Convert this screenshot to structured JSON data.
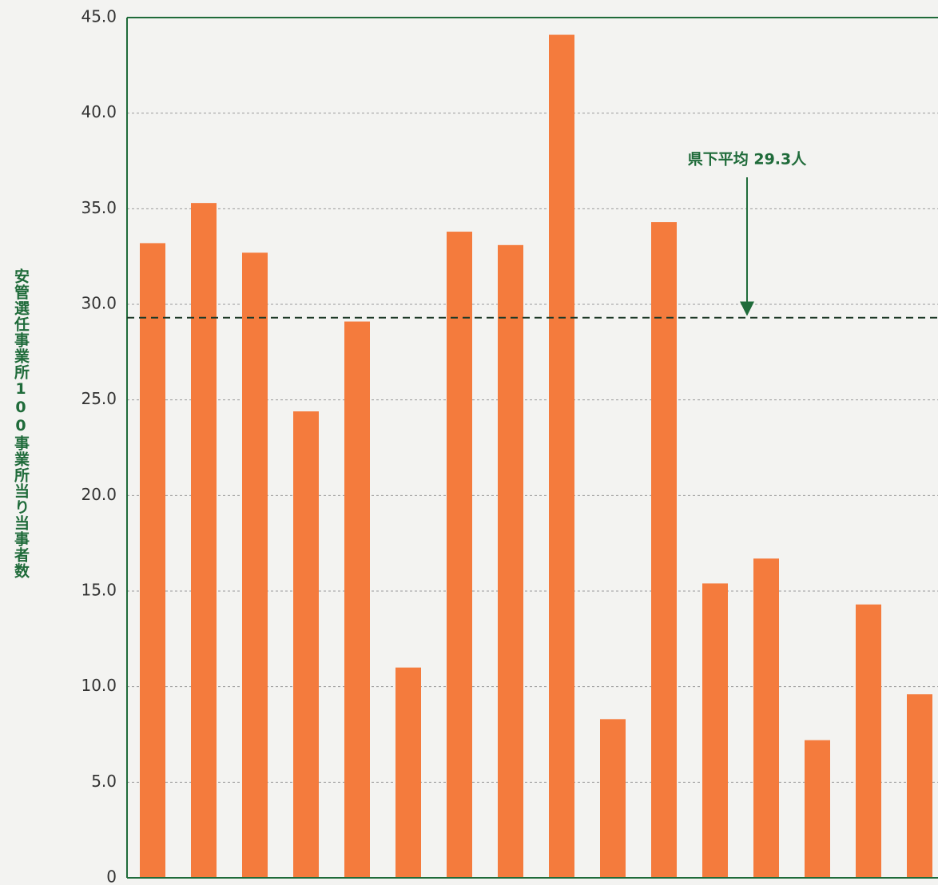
{
  "chart_data": {
    "type": "bar",
    "y_label": "安管選任事業所100事業所当り当事者数",
    "categories": [
      null,
      null,
      null,
      null,
      null,
      null,
      null,
      null,
      null,
      null,
      null,
      null,
      null,
      null,
      null,
      null
    ],
    "values": [
      33.2,
      35.3,
      32.7,
      24.4,
      29.1,
      11.0,
      33.8,
      33.1,
      44.1,
      8.3,
      34.3,
      15.4,
      16.7,
      7.2,
      14.3,
      9.6
    ],
    "color": "#f47b3d",
    "ylim": [
      0,
      45
    ],
    "yticks": [
      0,
      {
        "value": 5,
        "label": "5.0"
      },
      {
        "value": 10,
        "label": "10.0"
      },
      {
        "value": 15,
        "label": "15.0"
      },
      {
        "value": 20,
        "label": "20.0"
      },
      {
        "value": 25,
        "label": "25.0"
      },
      {
        "value": 30,
        "label": "30.0"
      },
      {
        "value": 35,
        "label": "35.0"
      },
      {
        "value": 40,
        "label": "40.0"
      },
      {
        "value": 45,
        "label": "45.0"
      }
    ],
    "grid": true,
    "reference_line": {
      "value": 29.3,
      "label": "県下平均 29.3人"
    }
  }
}
